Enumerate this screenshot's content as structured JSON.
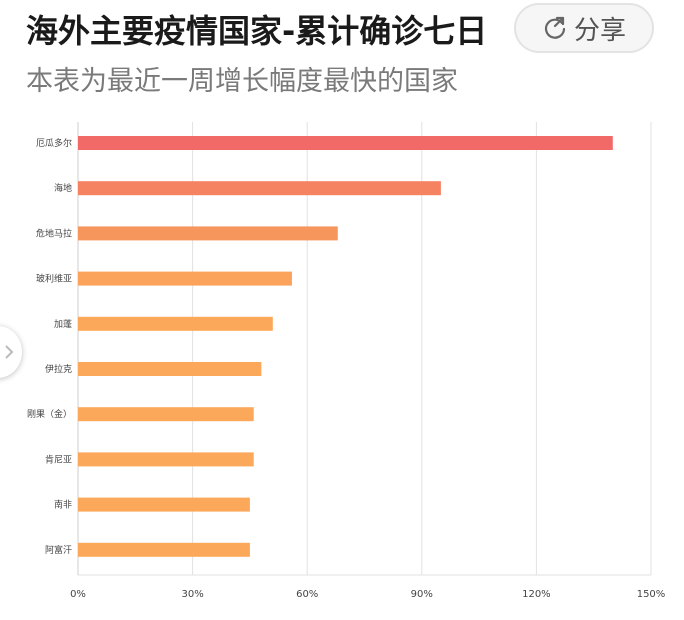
{
  "header": {
    "title": "海外主要疫情国家-累计确诊七日",
    "subtitle": "本表为最近一周增长幅度最快的国家",
    "share_label": "分享",
    "share_icon": "share-refresh-icon",
    "side_handle_icon": "chevron-right-icon"
  },
  "chart_data": {
    "type": "bar",
    "orientation": "horizontal",
    "title": "海外主要疫情国家-累计确诊七日",
    "subtitle": "本表为最近一周增长幅度最快的国家",
    "categories": [
      "厄瓜多尔",
      "海地",
      "危地马拉",
      "玻利维亚",
      "加蓬",
      "伊拉克",
      "刚果（金）",
      "肯尼亚",
      "南非",
      "阿富汗"
    ],
    "values": [
      140,
      95,
      68,
      56,
      51,
      48,
      46,
      46,
      45,
      45
    ],
    "value_unit": "%",
    "xlim": [
      0,
      150
    ],
    "xticks": [
      "0%",
      "30%",
      "60%",
      "90%",
      "120%",
      "150%"
    ],
    "xtick_values": [
      0,
      30,
      60,
      90,
      120,
      150
    ],
    "grid": true,
    "colors": [
      "#f26a68",
      "#f58260",
      "#f7965c",
      "#fba35a",
      "#fca85a",
      "#fca85a",
      "#fca85a",
      "#fca85a",
      "#fca85a",
      "#fca85a"
    ]
  }
}
